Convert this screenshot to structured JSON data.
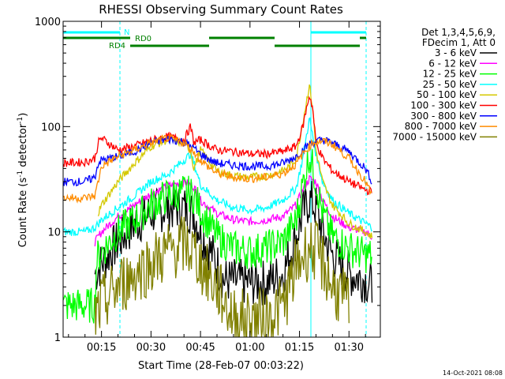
{
  "chart_data": {
    "type": "line",
    "title": "RHESSI Observing Summary Count Rates",
    "ylabel_main": "Count Rate (s",
    "ylabel_sup1": "-1",
    "ylabel_mid": " detector",
    "ylabel_sup2": "-1",
    "ylabel_end": ")",
    "xlabel": "Start Time (28-Feb-07 00:03:22)",
    "x_unit": "minutes after 00:00 UT",
    "xlim": [
      3.37,
      99.5
    ],
    "ylim": [
      1,
      1000
    ],
    "yscale": "log",
    "x_ticks": [
      {
        "x": 15,
        "label": "00:15"
      },
      {
        "x": 30,
        "label": "00:30"
      },
      {
        "x": 45,
        "label": "00:45"
      },
      {
        "x": 60,
        "label": "01:00"
      },
      {
        "x": 75,
        "label": "01:15"
      },
      {
        "x": 90,
        "label": "01:30"
      }
    ],
    "y_ticks": [
      {
        "y": 1,
        "label": "1"
      },
      {
        "y": 10,
        "label": "10"
      },
      {
        "y": 100,
        "label": "100"
      },
      {
        "y": 1000,
        "label": "1000"
      }
    ],
    "legend_header": [
      "Det 1,3,4,5,6,9,",
      "FDecim 1, Att 0"
    ],
    "series": [
      {
        "name": "3 - 6 keV",
        "color": "#000000",
        "x": [
          13,
          15,
          20,
          25,
          30,
          35,
          40,
          43,
          45,
          50,
          52,
          58,
          65,
          70,
          72,
          74,
          76,
          78,
          80,
          82,
          85,
          90,
          95,
          97
        ],
        "values": [
          4,
          5,
          8,
          12,
          15,
          17,
          17,
          15,
          10,
          5,
          3.5,
          3.3,
          3.3,
          4,
          6,
          9,
          15,
          20,
          17,
          10,
          6,
          4,
          3.5,
          3
        ]
      },
      {
        "name": "6 - 12 keV",
        "color": "#ff00ff",
        "x": [
          13,
          15,
          20,
          25,
          30,
          35,
          40,
          43,
          45,
          50,
          55,
          60,
          65,
          70,
          74,
          76,
          78,
          80,
          82,
          85,
          90,
          95,
          97
        ],
        "values": [
          8,
          10,
          14,
          18,
          23,
          27,
          30,
          27,
          20,
          15,
          13,
          12.5,
          13,
          14,
          18,
          25,
          32,
          30,
          20,
          14,
          11,
          10,
          9
        ]
      },
      {
        "name": "12 - 25 keV",
        "color": "#00ff00",
        "x": [
          3.4,
          13,
          13.5,
          15,
          20,
          25,
          30,
          35,
          40,
          43,
          45,
          50,
          55,
          60,
          65,
          70,
          74,
          76,
          78,
          80,
          82,
          85,
          90,
          95,
          97
        ],
        "values": [
          2,
          2,
          5.5,
          6.5,
          10,
          13,
          18,
          22,
          24,
          22,
          16,
          9,
          7,
          6.5,
          7,
          8,
          13,
          28,
          55,
          30,
          15,
          9,
          7,
          6,
          6
        ]
      },
      {
        "name": "25 - 50 keV",
        "color": "#00ffff",
        "x": [
          3.4,
          10,
          13,
          15,
          20,
          25,
          30,
          35,
          40,
          42,
          43,
          45,
          50,
          55,
          60,
          65,
          70,
          74,
          76,
          78,
          80,
          82,
          85,
          90,
          95,
          97
        ],
        "values": [
          10,
          10,
          11,
          13,
          17,
          22,
          30,
          35,
          48,
          55,
          45,
          28,
          20,
          17,
          16,
          17,
          20,
          26,
          50,
          120,
          55,
          30,
          20,
          15,
          12,
          11
        ]
      },
      {
        "name": "50 - 100 keV",
        "color": "#d4c800",
        "x": [
          14,
          15,
          20,
          25,
          30,
          35,
          40,
          42,
          43,
          45,
          48,
          50,
          55,
          60,
          65,
          70,
          72,
          74,
          76,
          78,
          79,
          80,
          82,
          85,
          90,
          95,
          97
        ],
        "values": [
          15,
          18,
          30,
          45,
          65,
          75,
          70,
          60,
          40,
          60,
          45,
          38,
          34,
          33,
          34,
          38,
          42,
          50,
          110,
          250,
          150,
          60,
          30,
          18,
          12,
          10,
          9
        ]
      },
      {
        "name": "100 - 300 keV",
        "color": "#ff0000",
        "x": [
          3.4,
          10,
          13,
          14,
          15,
          20,
          25,
          30,
          35,
          40,
          42,
          43,
          45,
          48,
          50,
          55,
          60,
          65,
          70,
          74,
          76,
          78,
          79,
          80,
          82,
          85,
          90,
          95,
          97
        ],
        "values": [
          45,
          46,
          50,
          70,
          78,
          60,
          65,
          74,
          80,
          75,
          100,
          70,
          75,
          65,
          60,
          58,
          55,
          55,
          58,
          65,
          100,
          200,
          150,
          70,
          50,
          38,
          30,
          25,
          24
        ]
      },
      {
        "name": "300 - 800 keV",
        "color": "#0000ff",
        "x": [
          3.4,
          10,
          13,
          14,
          15,
          20,
          25,
          30,
          35,
          40,
          43,
          45,
          48,
          50,
          55,
          60,
          65,
          70,
          74,
          76,
          78,
          79,
          80,
          82,
          85,
          90,
          95,
          97
        ],
        "values": [
          30,
          30,
          33,
          45,
          48,
          52,
          58,
          70,
          76,
          72,
          62,
          55,
          48,
          45,
          43,
          42,
          42,
          45,
          52,
          60,
          68,
          70,
          72,
          75,
          70,
          58,
          40,
          30
        ]
      },
      {
        "name": "800 - 7000 keV",
        "color": "#ff8c00",
        "x": [
          3.4,
          10,
          13,
          14,
          15,
          20,
          25,
          30,
          35,
          40,
          43,
          45,
          48,
          50,
          55,
          60,
          65,
          70,
          74,
          76,
          78,
          79,
          80,
          82,
          85,
          90,
          95,
          97
        ],
        "values": [
          21,
          21,
          22,
          30,
          42,
          52,
          60,
          70,
          78,
          70,
          58,
          48,
          40,
          36,
          33,
          32,
          33,
          36,
          44,
          55,
          65,
          70,
          72,
          73,
          68,
          50,
          30,
          22
        ]
      },
      {
        "name": "7000 - 15000 keV",
        "color": "#808000",
        "x": [
          13,
          15,
          20,
          25,
          30,
          35,
          40,
          43,
          45,
          48,
          50,
          55,
          65,
          70,
          72,
          74,
          76,
          78,
          80,
          82,
          85,
          90
        ],
        "values": [
          1.5,
          2,
          3,
          4,
          5,
          6.5,
          7.5,
          6.5,
          5,
          3.5,
          3,
          1.5,
          1.5,
          2,
          3,
          4.5,
          6,
          7,
          6.5,
          5,
          3,
          2
        ]
      }
    ],
    "annotations": {
      "night_label": "N",
      "rd0_label": "RD0",
      "rd4_label": "RD4",
      "timestamp": "14-Oct-2021 08:08"
    }
  }
}
